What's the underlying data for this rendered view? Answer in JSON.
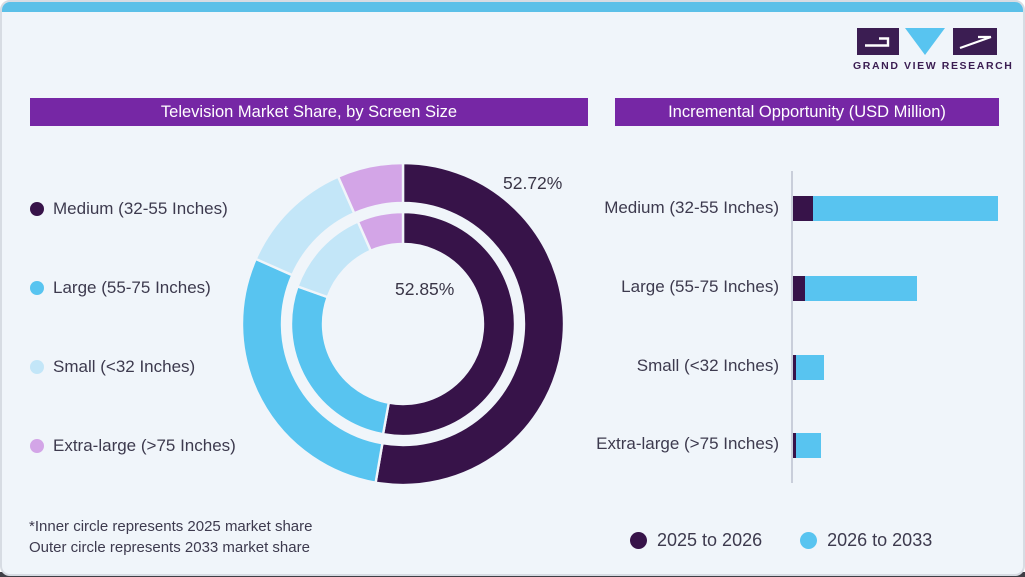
{
  "logo": {
    "wordmark": "GRAND VIEW RESEARCH"
  },
  "colors": {
    "dark_purple": "#371349",
    "blue": "#58c4f0",
    "light_blue": "#c3e6f8",
    "lavender": "#d3a5e7",
    "header_purple": "#7627a5",
    "logo_purple": "#3b1d52",
    "top_strip_blue": "#5bc0e8",
    "background": "#f0f5fa",
    "text": "#3d3a4e"
  },
  "left_panel": {
    "title": "Television Market Share, by Screen Size",
    "outer_ring_label": "52.72%",
    "center_label": "52.85%",
    "footnote_line1": "*Inner circle represents 2025 market share",
    "footnote_line2": "Outer circle represents 2033 market share"
  },
  "right_panel": {
    "title": "Incremental Opportunity (USD Million)"
  },
  "chart_data": [
    {
      "type": "pie",
      "subtype": "double-ring-donut",
      "title": "Television Market Share, by Screen Size",
      "categories": [
        "Medium (32-55 Inches)",
        "Large (55-75 Inches)",
        "Small (<32 Inches)",
        "Extra-large (>75 Inches)"
      ],
      "colors": [
        "#371349",
        "#58c4f0",
        "#c3e6f8",
        "#d3a5e7"
      ],
      "start_angle_deg": 0,
      "direction": "clockwise",
      "rings": [
        {
          "name": "inner",
          "represents": "2025 market share",
          "values": [
            52.85,
            27.6,
            12.95,
            6.6
          ],
          "label": "52.85%",
          "labeled_segment": "Medium (32-55 Inches)"
        },
        {
          "name": "outer",
          "represents": "2033 market share",
          "values": [
            52.72,
            28.9,
            11.78,
            6.6
          ],
          "label": "52.72%",
          "labeled_segment": "Medium (32-55 Inches)"
        }
      ],
      "legend_position": "left"
    },
    {
      "type": "bar",
      "orientation": "horizontal",
      "stacked": true,
      "title": "Incremental Opportunity (USD Million)",
      "categories": [
        "Medium (32-55 Inches)",
        "Large (55-75 Inches)",
        "Small (<32 Inches)",
        "Extra-large (>75 Inches)"
      ],
      "series": [
        {
          "name": "2025 to 2026",
          "color": "#371349",
          "values": [
            20,
            12,
            3,
            3
          ]
        },
        {
          "name": "2026 to 2033",
          "color": "#58c4f0",
          "values": [
            185,
            112,
            28,
            25
          ]
        }
      ],
      "value_axis_note": "no numeric axis labels shown; values are relative bar lengths",
      "grid": false,
      "legend_position": "bottom"
    }
  ]
}
